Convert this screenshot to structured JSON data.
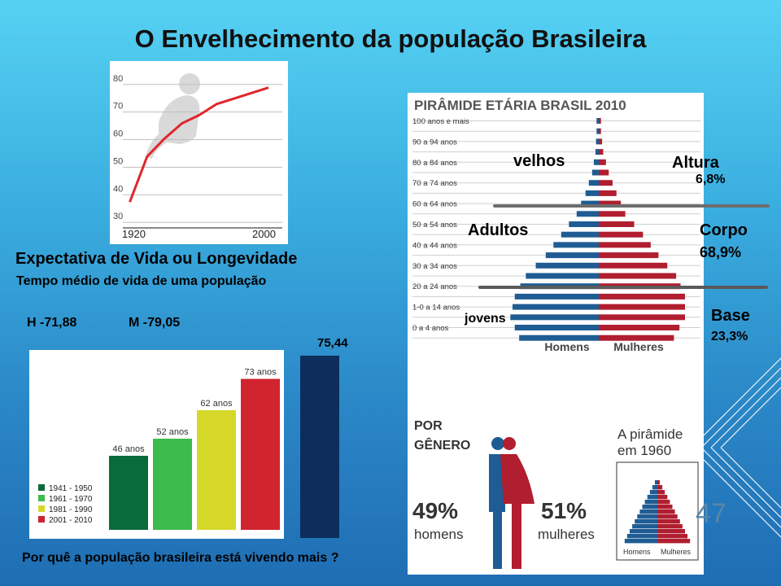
{
  "title": "O Envelhecimento da população Brasileira",
  "life_expectancy": {
    "heading": "Expectativa de Vida  ou Longevidade",
    "subheading": "Tempo médio de vida de uma população",
    "men": "H -71,88",
    "women": "M -79,05",
    "average": "75,44"
  },
  "question": "Por quê  a população brasileira está vivendo mais ?",
  "slide_number": "47",
  "pyramid_labels": {
    "velhos": "velhos",
    "altura": "Altura",
    "altura_pct": "6,8%",
    "adultos": "Adultos",
    "corpo": "Corpo",
    "corpo_pct": "68,9%",
    "jovens": "jovens",
    "base": "Base",
    "base_pct": "23,3%"
  },
  "gender": {
    "title_line1": "POR",
    "title_line2": "GÊNERO",
    "men_pct": "49%",
    "men_label": "homens",
    "women_pct": "51%",
    "women_label": "mulheres",
    "inset_title_line1": "A pirâmide",
    "inset_title_line2": "em 1960",
    "inset_men": "Homens",
    "inset_women": "Mulheres"
  },
  "colors": {
    "men": "#1f5c93",
    "women": "#b01e2f",
    "line": "#e0262b",
    "avg_bar": "#0d2d5c"
  },
  "chart_data": [
    {
      "type": "line",
      "title": "",
      "x_tick_labels": [
        "1920",
        "2000"
      ],
      "y_ticks": [
        30,
        40,
        50,
        60,
        70,
        80
      ],
      "x": [
        1920,
        1930,
        1940,
        1950,
        1960,
        1970,
        1980,
        1990,
        2000
      ],
      "values": [
        35,
        51.5,
        58,
        63.5,
        66.5,
        70.5,
        72.5,
        74.5,
        76.5
      ],
      "xlim": [
        1916,
        2008
      ],
      "ylim": [
        28,
        82
      ],
      "grid": true
    },
    {
      "type": "bar",
      "categories": [
        "1941 - 1950",
        "1961 - 1970",
        "1981 - 1990",
        "2001 - 2010"
      ],
      "values": [
        46,
        52,
        62,
        73
      ],
      "data_labels": [
        "46 anos",
        "52 anos",
        "62 anos",
        "73 anos"
      ],
      "colors": [
        "#0a6b3a",
        "#3dbb4b",
        "#d6d82a",
        "#d0242f"
      ],
      "legend": "bottom-left",
      "ylim": [
        0,
        80
      ]
    },
    {
      "type": "bar",
      "title": "PIRÂMIDE ETÁRIA  BRASIL 2010",
      "orientation": "horizontal",
      "categories": [
        "100 anos e mais",
        "90 a 94 anos",
        "80 a 84 anos",
        "70 a 74 anos",
        "60 a 64 anos",
        "50 a 54 anos",
        "40 a 44 anos",
        "30 a 34 anos",
        "20 a 24 anos",
        "1-0 a 14 anos",
        "0 a 4 anos"
      ],
      "series": [
        {
          "name": "Homens",
          "values": [
            0.1,
            0.15,
            0.3,
            0.6,
            1.0,
            1.7,
            2.4,
            3.3,
            3.8,
            4.0,
            3.6
          ]
        },
        {
          "name": "Mulheres",
          "values": [
            0.1,
            0.2,
            0.45,
            0.8,
            1.2,
            2.0,
            2.7,
            3.5,
            3.9,
            3.9,
            3.4
          ]
        }
      ],
      "xlim": [
        -4.6,
        4.6
      ],
      "legend": "bottom"
    }
  ]
}
